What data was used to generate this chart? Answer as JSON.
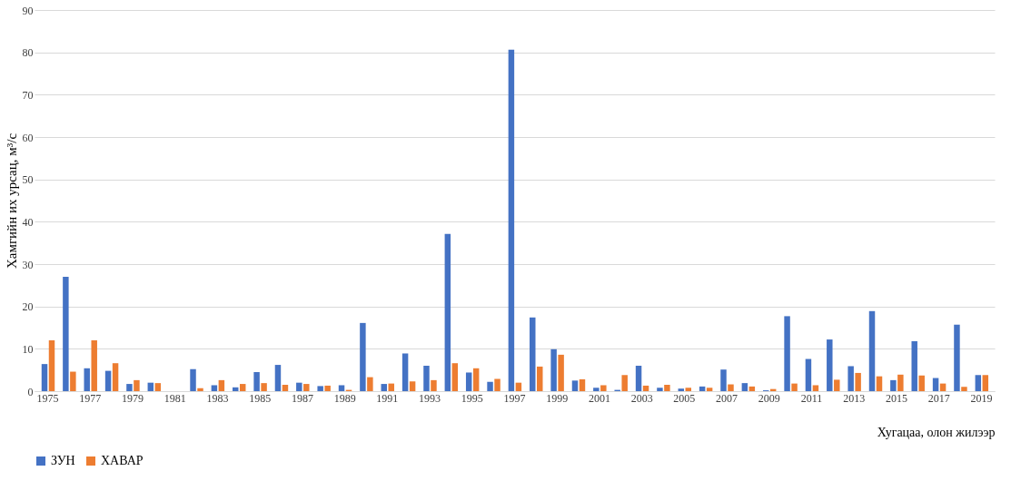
{
  "chart_data": {
    "type": "bar",
    "xlabel": "Хугацаа, олон жилээр",
    "ylabel": "Хамгийн их урсац, м³/с",
    "categories": [
      "1975",
      null,
      "1977",
      null,
      "1979",
      null,
      "1981",
      null,
      "1983",
      null,
      "1985",
      null,
      "1987",
      null,
      "1989",
      null,
      "1991",
      null,
      "1993",
      null,
      "1995",
      null,
      "1997",
      null,
      "1999",
      null,
      "2001",
      null,
      "2003",
      null,
      "2005",
      null,
      "2007",
      null,
      "2009",
      null,
      "2011",
      null,
      "2013",
      null,
      "2015",
      null,
      "2017",
      null,
      "2019"
    ],
    "series": [
      {
        "name": "ЗУН",
        "color": "#4472c4",
        "values": [
          6.4,
          27,
          5.4,
          4.8,
          1.7,
          2.0,
          0,
          5.2,
          1.4,
          0.9,
          4.5,
          6.2,
          2.0,
          1.2,
          1.4,
          16.1,
          1.7,
          8.9,
          6.0,
          37.1,
          4.4,
          2.2,
          80.6,
          17.4,
          9.9,
          2.5,
          0.8,
          0.3,
          6.0,
          0.8,
          0.6,
          1.1,
          5.1,
          1.9,
          0.2,
          17.7,
          7.6,
          12.2,
          5.9,
          18.9,
          2.6,
          11.8,
          3.1,
          15.7,
          3.8
        ]
      },
      {
        "name": "ХАВАР",
        "color": "#ed7d31",
        "values": [
          12,
          4.6,
          12,
          6.6,
          2.6,
          1.9,
          0,
          0.7,
          2.6,
          1.7,
          1.9,
          1.5,
          1.7,
          1.3,
          0.3,
          3.3,
          1.8,
          2.3,
          2.6,
          6.6,
          5.4,
          2.9,
          2.0,
          5.8,
          8.6,
          2.8,
          1.4,
          3.8,
          1.3,
          1.5,
          0.8,
          0.8,
          1.6,
          1.1,
          0.5,
          1.8,
          1.4,
          2.7,
          4.3,
          3.5,
          3.9,
          3.7,
          1.8,
          1.0,
          3.8
        ]
      }
    ],
    "ylim": [
      0,
      90
    ],
    "yticks": [
      0,
      10,
      20,
      30,
      40,
      50,
      60,
      70,
      80,
      90
    ],
    "grid": "y",
    "legend": "bottom"
  }
}
